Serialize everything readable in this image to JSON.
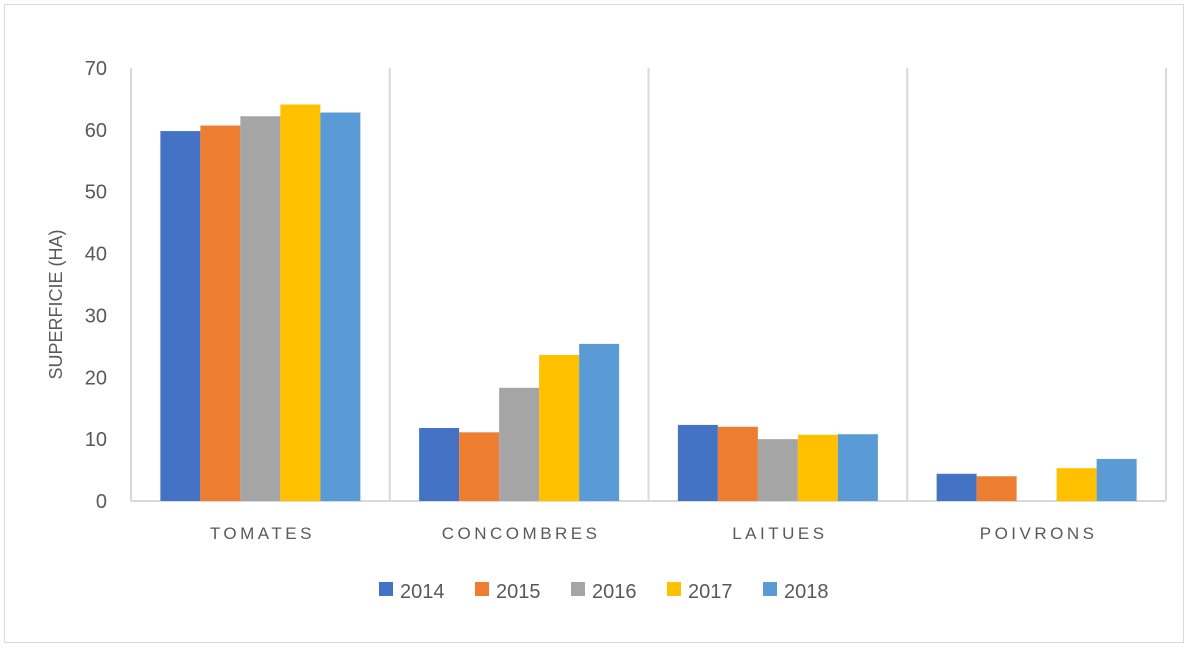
{
  "chart_data": {
    "type": "bar",
    "title": "",
    "xlabel": "",
    "ylabel": "SUPERFICIE (HA)",
    "ylim": [
      0,
      70
    ],
    "yticks": [
      0,
      10,
      20,
      30,
      40,
      50,
      60,
      70
    ],
    "grid": "vertical category separators",
    "legend": "bottom",
    "categories": [
      "TOMATES",
      "CONCOMBRES",
      "LAITUES",
      "POIVRONS"
    ],
    "series": [
      {
        "name": "2014",
        "color": "#4472C4",
        "values": [
          59.8,
          11.8,
          12.3,
          4.4
        ]
      },
      {
        "name": "2015",
        "color": "#ED7D31",
        "values": [
          60.7,
          11.1,
          12.0,
          4.0
        ]
      },
      {
        "name": "2016",
        "color": "#A5A5A5",
        "values": [
          62.2,
          18.3,
          10.0,
          0
        ]
      },
      {
        "name": "2017",
        "color": "#FFC000",
        "values": [
          64.1,
          23.6,
          10.7,
          5.3
        ]
      },
      {
        "name": "2018",
        "color": "#5B9BD5",
        "values": [
          62.8,
          25.4,
          10.8,
          6.8
        ]
      }
    ]
  }
}
